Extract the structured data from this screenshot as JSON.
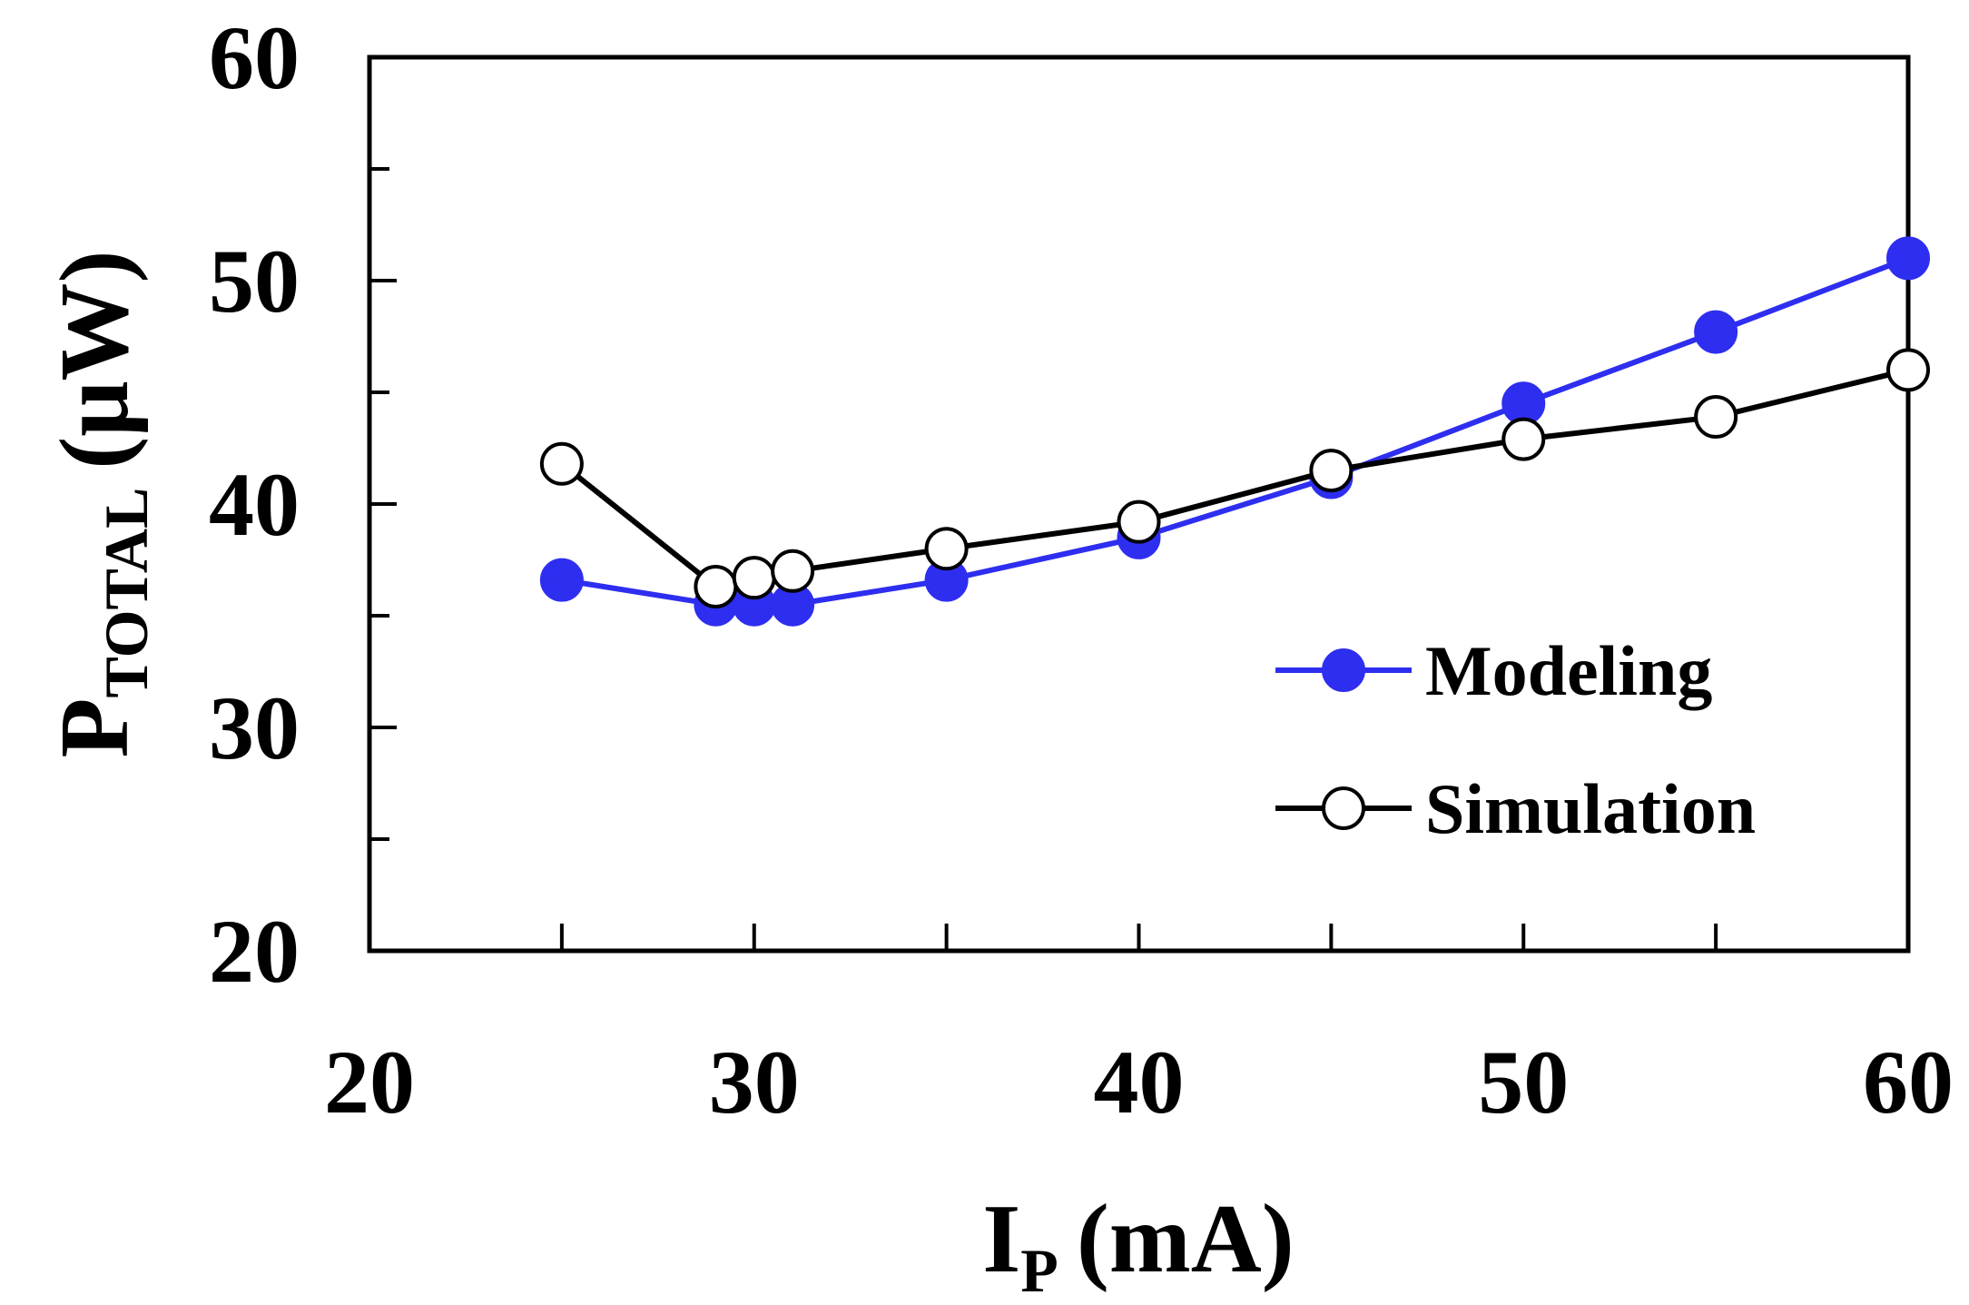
{
  "chart_data": {
    "type": "line",
    "title": "",
    "xlabel": {
      "main": "I",
      "subscript": "P",
      "unit": "(mA)"
    },
    "ylabel": {
      "main": "P",
      "subscript": "TOTAL",
      "unit": "(μW)"
    },
    "xlim": [
      20,
      60
    ],
    "ylim": [
      20,
      60
    ],
    "xticks": [
      20,
      30,
      40,
      50,
      60
    ],
    "yticks": [
      20,
      30,
      40,
      50,
      60
    ],
    "xtick_labels": [
      "20",
      "30",
      "40",
      "50",
      "60"
    ],
    "ytick_labels": [
      "20",
      "30",
      "40",
      "50",
      "60"
    ],
    "minor_xticks": [
      25,
      35,
      45,
      55
    ],
    "minor_yticks": [
      25,
      35,
      45,
      55
    ],
    "grid": false,
    "legend_position": "lower-right",
    "series": [
      {
        "name": "Modeling",
        "color": "#2e2ef0",
        "marker": "filled-circle",
        "x": [
          25,
          29,
          30,
          31,
          35,
          40,
          45,
          50,
          55,
          60
        ],
        "y": [
          36.6,
          35.5,
          35.5,
          35.5,
          36.6,
          38.5,
          41.2,
          44.5,
          47.7,
          51.0
        ]
      },
      {
        "name": "Simulation",
        "color": "#000000",
        "marker": "open-circle",
        "x": [
          25,
          29,
          30,
          31,
          35,
          40,
          45,
          50,
          55,
          60
        ],
        "y": [
          41.8,
          36.3,
          36.7,
          37.0,
          38.0,
          39.2,
          41.5,
          42.9,
          43.9,
          46.0
        ]
      }
    ]
  }
}
